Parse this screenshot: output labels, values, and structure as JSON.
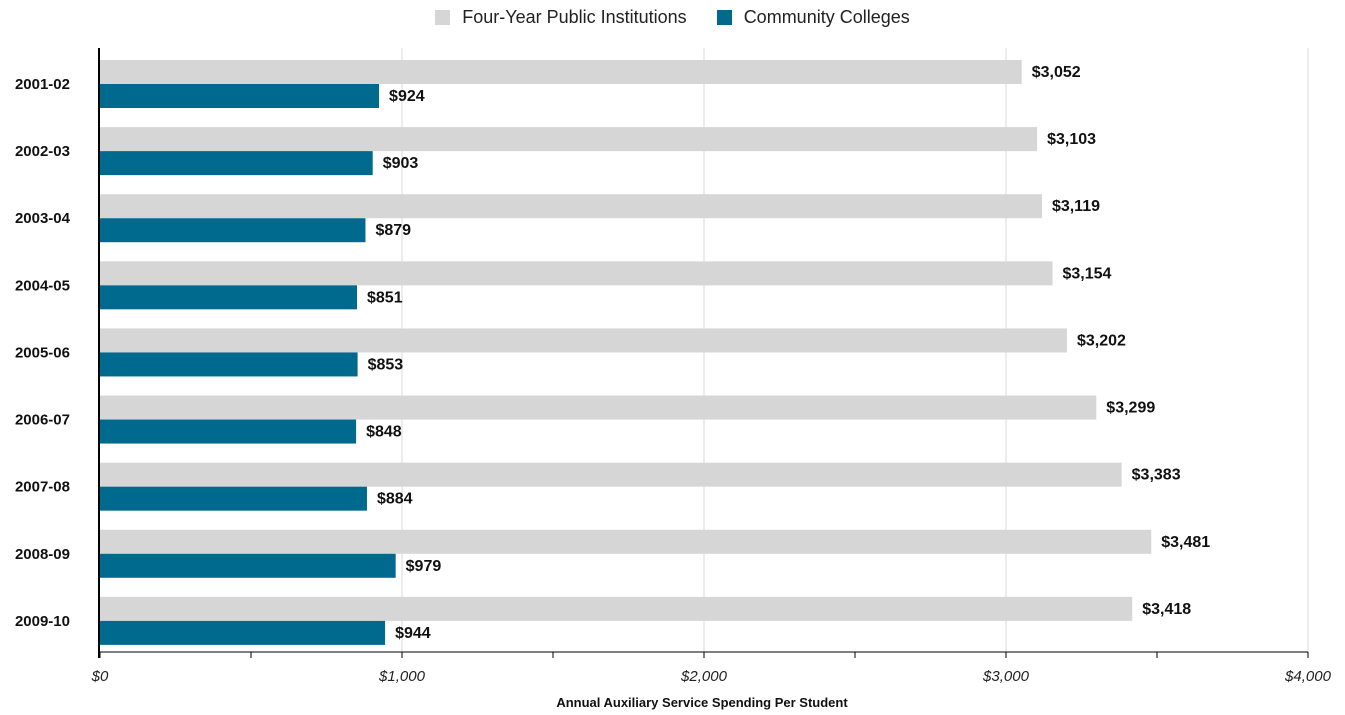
{
  "chart_data": {
    "type": "bar",
    "orientation": "horizontal",
    "categories": [
      "2001-02",
      "2002-03",
      "2003-04",
      "2004-05",
      "2005-06",
      "2006-07",
      "2007-08",
      "2008-09",
      "2009-10"
    ],
    "series": [
      {
        "name": "Four-Year Public Institutions",
        "color": "#d6d6d6",
        "values": [
          3052,
          3103,
          3119,
          3154,
          3202,
          3299,
          3383,
          3481,
          3418
        ],
        "value_labels": [
          "$3,052",
          "$3,103",
          "$3,119",
          "$3,154",
          "$3,202",
          "$3,299",
          "$3,383",
          "$3,481",
          "$3,418"
        ]
      },
      {
        "name": "Community Colleges",
        "color": "#006a8e",
        "values": [
          924,
          903,
          879,
          851,
          853,
          848,
          884,
          979,
          944
        ],
        "value_labels": [
          "$924",
          "$903",
          "$879",
          "$851",
          "$853",
          "$848",
          "$884",
          "$979",
          "$944"
        ]
      }
    ],
    "xlabel": "Annual Auxiliary Service Spending Per Student",
    "ylabel": "",
    "xlim": [
      0,
      4000
    ],
    "x_ticks": [
      0,
      1000,
      2000,
      3000,
      4000
    ],
    "x_tick_labels": [
      "$0",
      "$1,000",
      "$2,000",
      "$3,000",
      "$4,000"
    ],
    "grid": "vertical",
    "legend_position": "top-center"
  }
}
